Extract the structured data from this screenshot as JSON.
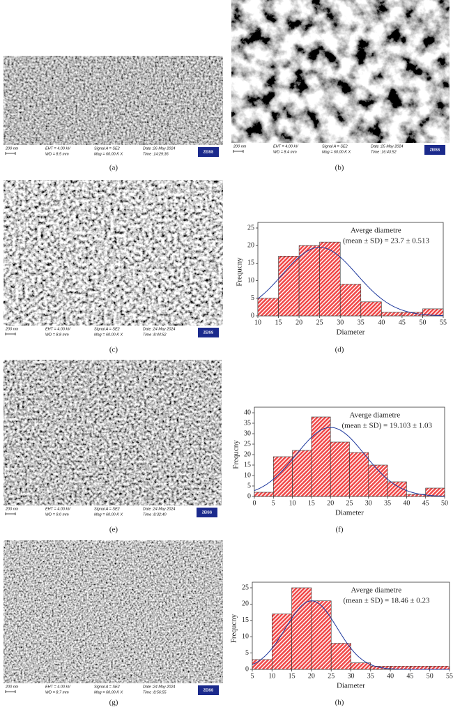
{
  "sem_images": [
    {
      "label": "(a)",
      "scale": "200 nm",
      "eht": "EHT = 4.00 kV",
      "wd": "WD = 8.5 mm",
      "signal": "Signal A = SE2",
      "mag": "Mag = 60.00 K X",
      "date": "Date :26 May 2024",
      "time": "Time :14:29:36",
      "logo": "ZEISS"
    },
    {
      "label": "(b)",
      "scale": "200 nm",
      "eht": "EHT = 4.00 kV",
      "wd": "WD = 8.4 mm",
      "signal": "Signal A = SE2",
      "mag": "Mag = 60.00 K X",
      "date": "Date :25 May 2024",
      "time": "Time :16:43:52",
      "logo": "ZEISS"
    },
    {
      "label": "(c)",
      "scale": "200 nm",
      "eht": "EHT = 4.00 kV",
      "wd": "WD = 8.8 mm",
      "signal": "Signal A = SE2",
      "mag": "Mag = 60.00 K X",
      "date": "Date :24 May 2024",
      "time": "Time :8:44:52",
      "logo": "ZEISS"
    },
    {
      "label": "(e)",
      "scale": "200 nm",
      "eht": "EHT = 4.00 kV",
      "wd": "WD = 9.0 mm",
      "signal": "Signal A = SE2",
      "mag": "Mag = 60.00 K X",
      "date": "Date :24 May 2024",
      "time": "Time :8:32:40",
      "logo": "ZEISS"
    },
    {
      "label": "(g)",
      "scale": "200 nm",
      "eht": "EHT = 4.00 kV",
      "wd": "WD = 8.7 mm",
      "signal": "Signal A = SE2",
      "mag": "Mag = 60.00 K X",
      "date": "Date :24 May 2024",
      "time": "Time :8:56:55",
      "logo": "ZEISS"
    }
  ],
  "chart_data": [
    {
      "type": "histogram",
      "label": "(d)",
      "xlabel": "Diameter",
      "ylabel": "Frequcny",
      "annotation": [
        "Averge diametre",
        "(mean ± SD) = 23.7 ± 0.513"
      ],
      "bins": [
        10,
        15,
        20,
        25,
        30,
        35,
        40,
        45,
        50,
        55
      ],
      "values": [
        5,
        17,
        20,
        21,
        9,
        4,
        1,
        1,
        2
      ],
      "color": "#f04848",
      "xlim": [
        10,
        55
      ],
      "xticks": [
        10,
        15,
        20,
        25,
        30,
        35,
        40,
        45,
        50,
        55
      ],
      "ylim": [
        0,
        25
      ],
      "yticks": [
        0,
        5,
        10,
        15,
        20,
        25
      ],
      "fit": {
        "color": "#1f3a9e",
        "mean": 25,
        "sd": 9,
        "peak": 19.5
      }
    },
    {
      "type": "histogram",
      "label": "(f)",
      "xlabel": "Diameter",
      "ylabel": "Frequcny",
      "annotation": [
        "Averge diametre",
        "(mean ± SD) = 19.103 ± 1.03"
      ],
      "bins": [
        0,
        5,
        10,
        15,
        20,
        25,
        30,
        35,
        40,
        45,
        50
      ],
      "values": [
        2,
        19,
        22,
        38,
        26,
        21,
        15,
        7,
        1,
        4
      ],
      "color": "#f04848",
      "xlim": [
        0,
        50
      ],
      "xticks": [
        0,
        5,
        10,
        15,
        20,
        25,
        30,
        35,
        40,
        45,
        50
      ],
      "ylim": [
        0,
        40
      ],
      "yticks": [
        0,
        5,
        10,
        15,
        20,
        25,
        30,
        35,
        40
      ],
      "fit": {
        "color": "#1f3a9e",
        "mean": 20,
        "sd": 9,
        "peak": 33
      }
    },
    {
      "type": "histogram",
      "label": "(h)",
      "xlabel": "Diameter",
      "ylabel": "Frequcny",
      "annotation": [
        "Averge diametre",
        "(mean ± SD) = 18.46 ± 0.23"
      ],
      "bins": [
        5,
        10,
        15,
        20,
        25,
        30,
        35,
        40,
        45,
        50,
        55
      ],
      "values": [
        3,
        17,
        25,
        21,
        8,
        2,
        1,
        1,
        1,
        1
      ],
      "color": "#f04848",
      "xlim": [
        5,
        55
      ],
      "xticks": [
        5,
        10,
        15,
        20,
        25,
        30,
        35,
        40,
        45,
        50,
        55
      ],
      "ylim": [
        0,
        25
      ],
      "yticks": [
        0,
        5,
        10,
        15,
        20,
        25
      ],
      "fit": {
        "color": "#1f3a9e",
        "mean": 20,
        "sd": 6.5,
        "peak": 21
      }
    }
  ]
}
